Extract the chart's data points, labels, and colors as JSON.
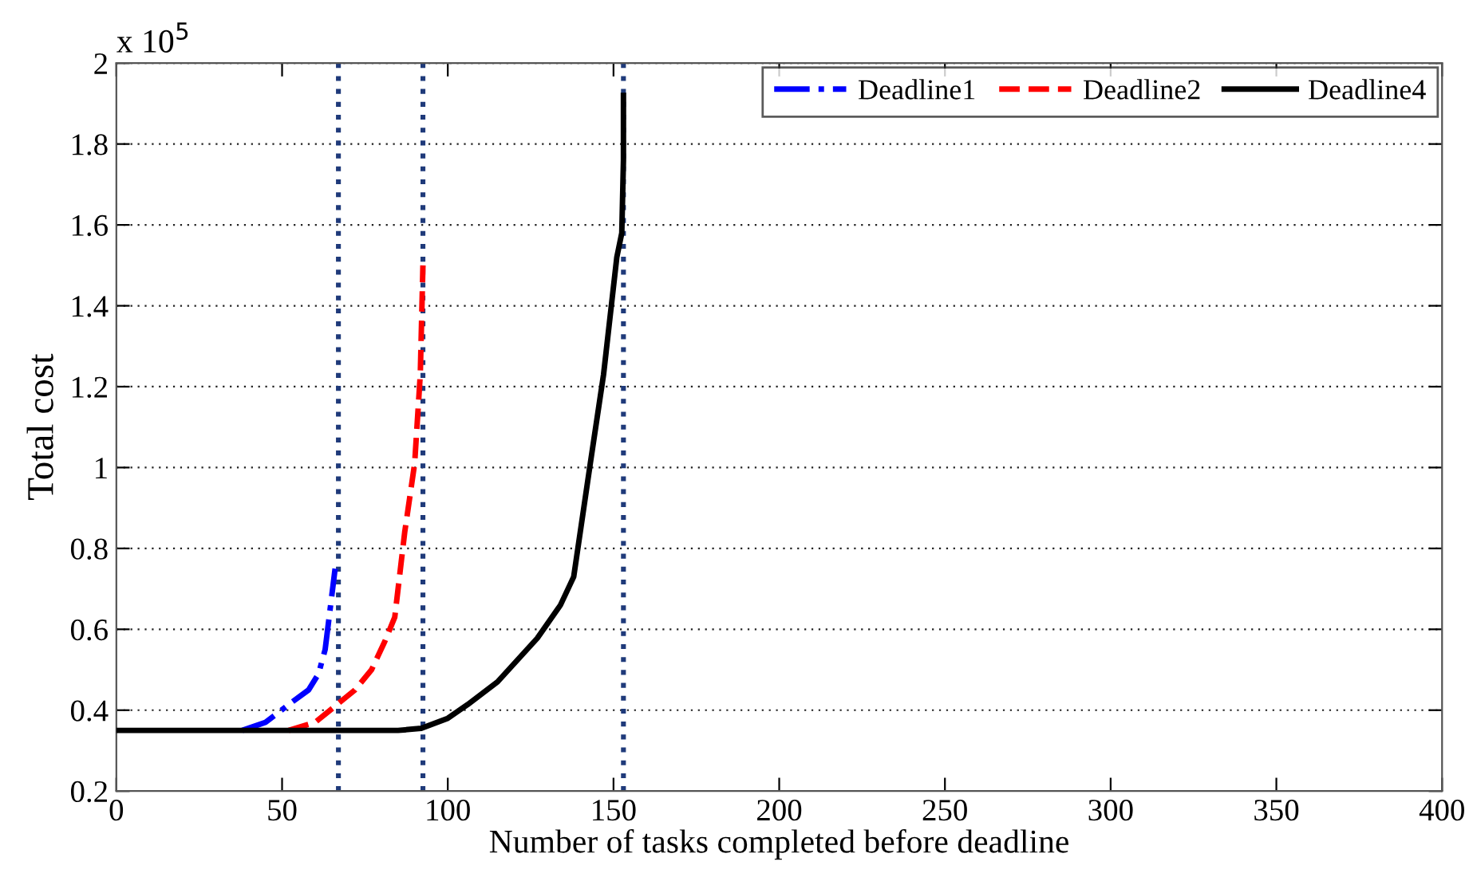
{
  "chart_data": {
    "type": "line",
    "xlabel": "Number of tasks completed before deadline",
    "ylabel": "Total cost",
    "annotations": [
      "x 10$^{5}$"
    ],
    "xlim": [
      0,
      400
    ],
    "xticks": [
      0,
      50,
      100,
      150,
      200,
      250,
      300,
      350,
      400
    ],
    "ylim": [
      0.2,
      2
    ],
    "yticks": [
      0.2,
      0.4,
      0.6,
      0.8,
      1,
      1.2,
      1.4,
      1.6,
      1.8,
      2
    ],
    "grid": "y",
    "legend": "top right",
    "series": [
      {
        "name": "Deadline1",
        "color": "#0000ff",
        "line_style": "dashdot",
        "x": [
          38,
          45,
          53,
          58,
          61,
          63,
          64.5,
          66
        ],
        "values": [
          0.35,
          0.37,
          0.42,
          0.45,
          0.49,
          0.55,
          0.65,
          0.75
        ]
      },
      {
        "name": "Deadline2",
        "color": "#ff0000",
        "line_style": "dashed",
        "x": [
          52,
          60,
          66,
          72,
          77,
          81,
          84,
          87,
          90,
          91.7,
          92.5
        ],
        "values": [
          0.35,
          0.37,
          0.41,
          0.45,
          0.5,
          0.57,
          0.63,
          0.84,
          1.01,
          1.23,
          1.5
        ]
      },
      {
        "name": "Deadline4",
        "color": "#000000",
        "line_style": "solid",
        "x": [
          0,
          85,
          92,
          100,
          106,
          115,
          127,
          134,
          138,
          143,
          147,
          151,
          152.5,
          153,
          153
        ],
        "values": [
          0.35,
          0.35,
          0.355,
          0.38,
          0.414,
          0.47,
          0.578,
          0.66,
          0.73,
          1.01,
          1.23,
          1.52,
          1.58,
          1.76,
          1.92
        ]
      }
    ],
    "ref_lines": [
      {
        "axis": "x",
        "value": 67,
        "color": "#1f3a7a",
        "line_style": "dotted"
      },
      {
        "axis": "x",
        "value": 92.5,
        "color": "#1f3a7a",
        "line_style": "dotted"
      },
      {
        "axis": "x",
        "value": 153,
        "color": "#1f3a7a",
        "line_style": "dotted"
      }
    ]
  }
}
